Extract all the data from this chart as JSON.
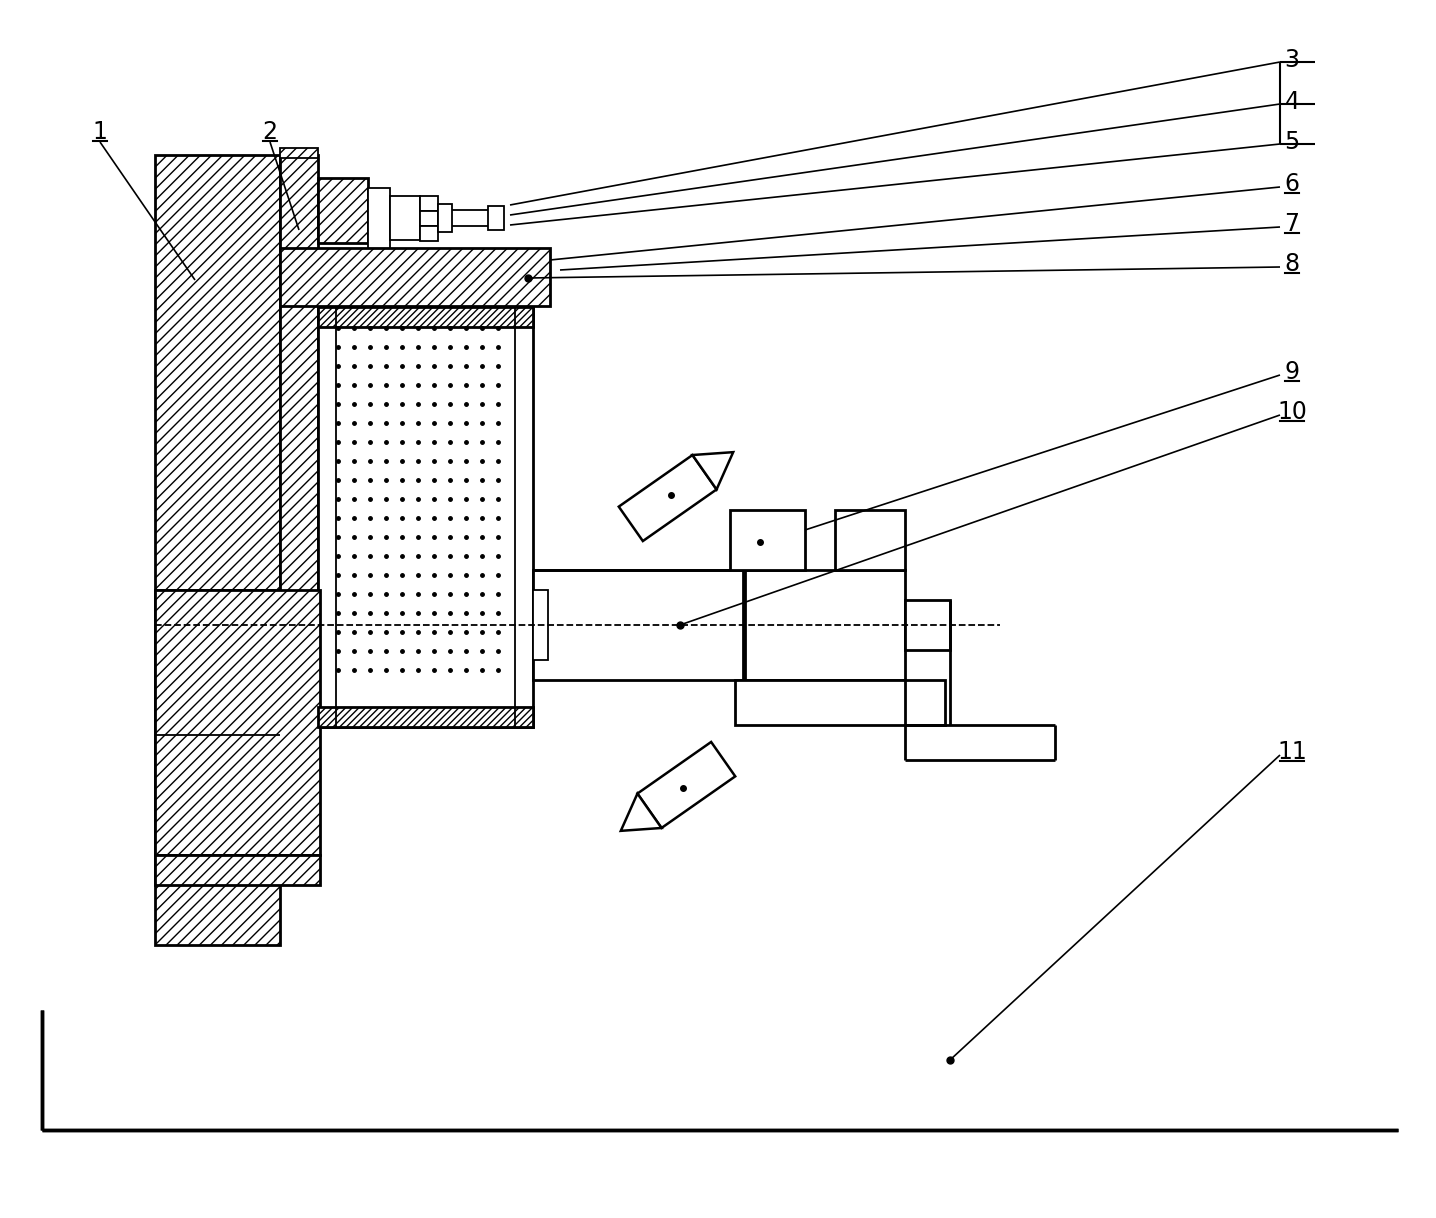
{
  "bg_color": "#ffffff",
  "lc": "#000000",
  "lw_main": 2.0,
  "lw_thin": 1.3,
  "lw_border": 2.5,
  "label_fs": 17,
  "dot_s": 9,
  "hatch_density": "///",
  "hatch_ring": "/////"
}
